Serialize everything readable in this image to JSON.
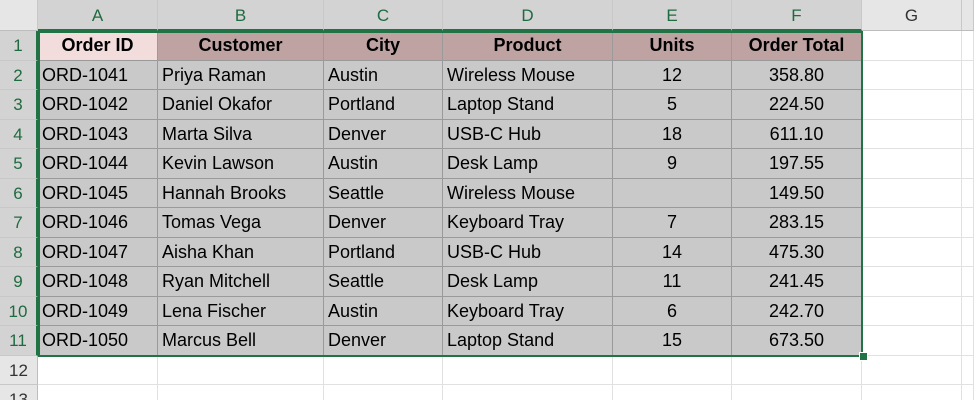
{
  "column_headers": [
    "A",
    "B",
    "C",
    "D",
    "E",
    "F",
    "G"
  ],
  "row_headers": [
    1,
    2,
    3,
    4,
    5,
    6,
    7,
    8,
    9,
    10,
    11,
    12,
    13
  ],
  "table": {
    "header": [
      "Order ID",
      "Customer",
      "City",
      "Product",
      "Units",
      "Order Total"
    ],
    "rows": [
      [
        "ORD-1041",
        "Priya Raman",
        "Austin",
        "Wireless Mouse",
        12,
        "358.80"
      ],
      [
        "ORD-1042",
        "Daniel Okafor",
        "Portland",
        "Laptop Stand",
        5,
        "224.50"
      ],
      [
        "ORD-1043",
        "Marta Silva",
        "Denver",
        "USB-C Hub",
        18,
        "611.10"
      ],
      [
        "ORD-1044",
        "Kevin Lawson",
        "Austin",
        "Desk Lamp",
        9,
        "197.55"
      ],
      [
        "ORD-1045",
        "Hannah Brooks",
        "Seattle",
        "Wireless Mouse",
        null,
        "149.50"
      ],
      [
        "ORD-1046",
        "Tomas Vega",
        "Denver",
        "Keyboard Tray",
        7,
        "283.15"
      ],
      [
        "ORD-1047",
        "Aisha Khan",
        "Portland",
        "USB-C Hub",
        14,
        "475.30"
      ],
      [
        "ORD-1048",
        "Ryan Mitchell",
        "Seattle",
        "Desk Lamp",
        11,
        "241.45"
      ],
      [
        "ORD-1049",
        "Lena Fischer",
        "Austin",
        "Keyboard Tray",
        6,
        "242.70"
      ],
      [
        "ORD-1050",
        "Marcus Bell",
        "Denver",
        "Laptop Stand",
        15,
        "673.50"
      ]
    ]
  }
}
